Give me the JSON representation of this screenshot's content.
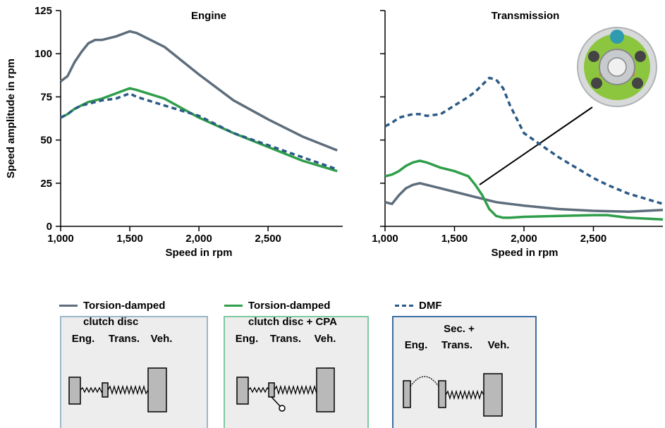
{
  "chart_data": [
    {
      "type": "line",
      "title": "Engine",
      "ylabel": "Speed amplitude in rpm",
      "xlabel": "Speed in rpm",
      "x": [
        1000,
        1050,
        1100,
        1150,
        1200,
        1250,
        1300,
        1400,
        1500,
        1550,
        1750,
        2000,
        2250,
        2500,
        2750,
        3000
      ],
      "series": [
        {
          "name": "Torsion-damped clutch disc",
          "color": "#5d6d7b",
          "dashed": false,
          "values": [
            84,
            87,
            95,
            101,
            106,
            108,
            108,
            110,
            113,
            112,
            104,
            88,
            73,
            62,
            52,
            44
          ]
        },
        {
          "name": "Torsion-damped clutch disc + CPA",
          "color": "#2f9e4a",
          "dashed": false,
          "values": [
            63,
            65,
            68,
            70,
            72,
            73,
            74,
            77,
            80,
            79,
            74,
            63,
            54,
            46,
            38,
            32
          ]
        },
        {
          "name": "DMF",
          "color": "#2c5a85",
          "dashed": true,
          "values": [
            63,
            65,
            68,
            70,
            71,
            72,
            73,
            74,
            77,
            75,
            70,
            64,
            54,
            47,
            40,
            33
          ]
        }
      ],
      "xlim": [
        1000,
        3040
      ],
      "ylim": [
        0,
        125
      ],
      "xticks": [
        {
          "value": 1000,
          "label": "1,000"
        },
        {
          "value": 1500,
          "label": "1,500"
        },
        {
          "value": 2000,
          "label": "2,000"
        },
        {
          "value": 2500,
          "label": "2,500"
        }
      ],
      "yticks": [
        0,
        25,
        50,
        75,
        100,
        125
      ]
    },
    {
      "type": "line",
      "title": "Transmission",
      "xlabel": "Speed in rpm",
      "x": [
        1000,
        1050,
        1100,
        1150,
        1200,
        1250,
        1300,
        1400,
        1500,
        1600,
        1650,
        1700,
        1750,
        1800,
        1850,
        1900,
        2000,
        2250,
        2500,
        2600,
        2750,
        3000
      ],
      "series": [
        {
          "color": "#5d6d7b",
          "dashed": false,
          "values": [
            14,
            13,
            18,
            22,
            24,
            25,
            24,
            22,
            20,
            18,
            17,
            16,
            15,
            14,
            13.5,
            13,
            12,
            10,
            9,
            8.8,
            8.5,
            9.5
          ]
        },
        {
          "color": "#2f9e4a",
          "dashed": false,
          "values": [
            29,
            30,
            32,
            35,
            37,
            38,
            37,
            34,
            32,
            29,
            24,
            18,
            10,
            6,
            5,
            5,
            5.5,
            6,
            6.5,
            6.5,
            5,
            4
          ]
        },
        {
          "color": "#2c5a85",
          "dashed": true,
          "values": [
            58,
            60,
            63,
            64,
            65,
            65,
            64,
            65,
            70,
            75,
            78,
            82,
            86,
            85,
            80,
            70,
            54,
            40,
            28,
            24,
            19,
            13
          ]
        }
      ],
      "xlim": [
        1000,
        3000
      ],
      "ylim": [
        0,
        125
      ],
      "xticks": [
        {
          "value": 1000,
          "label": "1,000"
        },
        {
          "value": 1500,
          "label": "1,500"
        },
        {
          "value": 2000,
          "label": "2,000"
        },
        {
          "value": 2500,
          "label": "2,500"
        }
      ],
      "shares_y_ticks_of_first": true
    }
  ],
  "diagrams": [
    {
      "labels": [
        "Eng.",
        "Trans.",
        "Veh."
      ],
      "border": "#9bb7cc"
    },
    {
      "labels": [
        "Eng.",
        "Trans.",
        "Veh."
      ],
      "border": "#7fc9a0"
    },
    {
      "labels": [
        "Eng.",
        "Sec. +",
        "Trans.",
        "Veh."
      ],
      "border": "#3d6fa3"
    }
  ]
}
